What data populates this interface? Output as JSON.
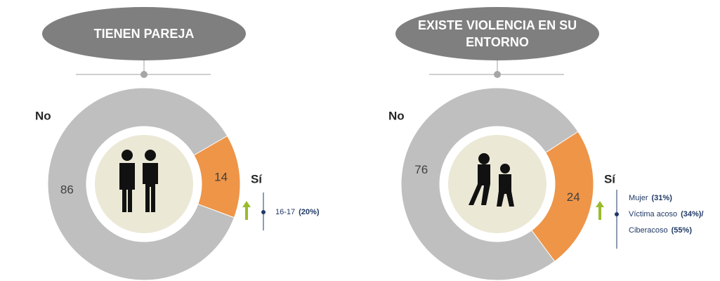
{
  "chart_data": [
    {
      "type": "pie",
      "title": "TIENEN PAREJA",
      "categories": [
        "No",
        "Sí"
      ],
      "values": [
        86,
        14
      ],
      "colors": [
        "#bfbfbf",
        "#ee9548"
      ],
      "notes": [
        {
          "text": "16-17",
          "pct": "(20%)"
        }
      ]
    },
    {
      "type": "pie",
      "title": "EXISTE VIOLENCIA EN SU ENTORNO",
      "categories": [
        "No",
        "Sí"
      ],
      "values": [
        76,
        24
      ],
      "colors": [
        "#bfbfbf",
        "#ee9548"
      ],
      "notes": [
        {
          "text": "Mujer",
          "pct": "(31%)"
        },
        {
          "text": "Víctima acoso",
          "pct": "(34%)/"
        },
        {
          "text": "Ciberacoso",
          "pct": "(55%)"
        }
      ]
    }
  ]
}
